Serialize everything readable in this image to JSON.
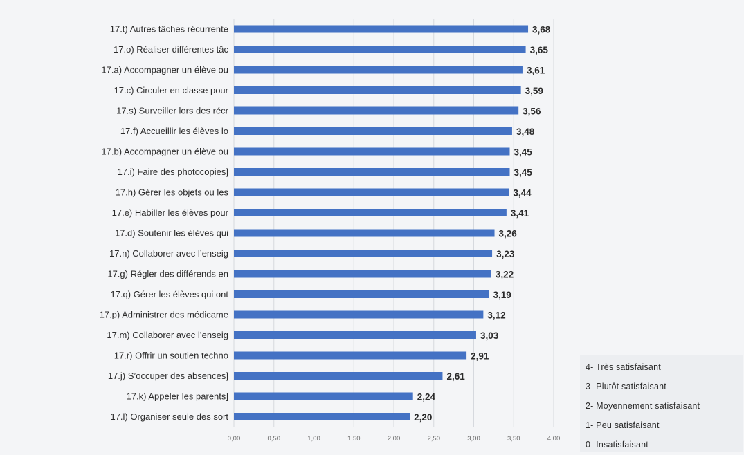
{
  "chart_data": {
    "type": "bar",
    "orientation": "horizontal",
    "categories": [
      "17.t) Autres tâches récurrente",
      "17.o) Réaliser différentes tâc",
      "17.a) Accompagner un élève ou",
      "17.c) Circuler en classe pour",
      "17.s) Surveiller lors des récr",
      "17.f) Accueillir les élèves lo",
      "17.b) Accompagner un élève ou",
      "17.i) Faire des photocopies]",
      "17.h) Gérer les objets ou les",
      "17.e) Habiller les élèves pour",
      "17.d) Soutenir les élèves qui",
      "17.n) Collaborer avec l’enseig",
      "17.g) Régler des différends en",
      "17.q) Gérer les élèves qui ont",
      "17.p) Administrer des médicame",
      "17.m) Collaborer avec l’enseig",
      "17.r) Offrir un soutien techno",
      "17.j) S’occuper des absences]",
      "17.k) Appeler les parents]",
      "17.l) Organiser seule des sort"
    ],
    "values": [
      3.68,
      3.65,
      3.61,
      3.59,
      3.56,
      3.48,
      3.45,
      3.45,
      3.44,
      3.41,
      3.26,
      3.23,
      3.22,
      3.19,
      3.12,
      3.03,
      2.91,
      2.61,
      2.24,
      2.2
    ],
    "value_labels": [
      "3,68",
      "3,65",
      "3,61",
      "3,59",
      "3,56",
      "3,48",
      "3,45",
      "3,45",
      "3,44",
      "3,41",
      "3,26",
      "3,23",
      "3,22",
      "3,19",
      "3,12",
      "3,03",
      "2,91",
      "2,61",
      "2,24",
      "2,20"
    ],
    "xlim": [
      0,
      4
    ],
    "x_ticks": [
      0,
      0.5,
      1,
      1.5,
      2,
      2.5,
      3,
      3.5,
      4
    ],
    "x_tick_labels": [
      "0,00",
      "0,50",
      "1,00",
      "1,50",
      "2,00",
      "2,50",
      "3,00",
      "3,50",
      "4,00"
    ],
    "grid": true,
    "bar_color": "#4472c4",
    "title": "",
    "xlabel": "",
    "ylabel": ""
  },
  "legend_box": {
    "placement": "bottom-right",
    "items": [
      "4- Très satisfaisant",
      "3- Plutôt satisfaisant",
      "2- Moyennement satisfaisant",
      "1- Peu satisfaisant",
      "0- Insatisfaisant"
    ]
  }
}
